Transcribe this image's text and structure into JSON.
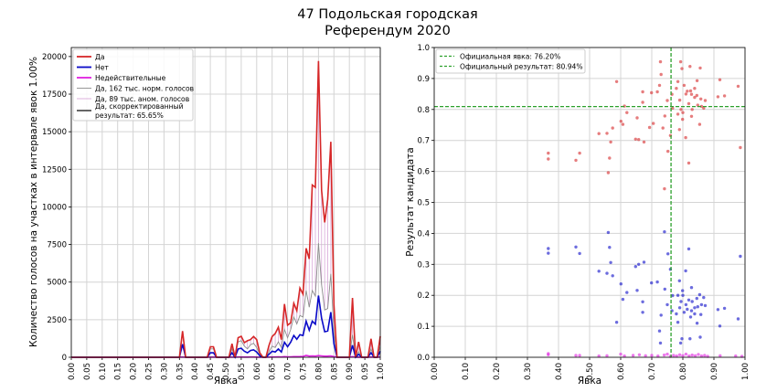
{
  "title": [
    "47 Подольская городская",
    "Референдум 2020"
  ],
  "colors": {
    "yes": "#d62728",
    "no": "#0a0ac8",
    "invalid": "#e020e0",
    "normal": "#8c8c8c",
    "anomalous": "#d8a8d8",
    "corrected": "#000000",
    "official": "#2ca02c",
    "grid": "#d4d4d4"
  },
  "chart_data": [
    {
      "type": "line",
      "xlabel": "Явка",
      "ylabel": "Количество голосов на участках в интервале явок 1.00%",
      "xlim": [
        0,
        1
      ],
      "ylim": [
        0,
        20600
      ],
      "grid": true,
      "legend_placement": "top-left",
      "xticks": [
        "0.00",
        "0.05",
        "0.10",
        "0.15",
        "0.20",
        "0.25",
        "0.30",
        "0.35",
        "0.40",
        "0.45",
        "0.50",
        "0.55",
        "0.60",
        "0.65",
        "0.70",
        "0.75",
        "0.80",
        "0.85",
        "0.90",
        "0.95",
        "1.00"
      ],
      "yticks": [
        "0",
        "2500",
        "5000",
        "7500",
        "10000",
        "12500",
        "15000",
        "17500",
        "20000"
      ],
      "x": [
        0.36,
        0.37,
        0.44,
        0.45,
        0.46,
        0.47,
        0.51,
        0.52,
        0.53,
        0.54,
        0.55,
        0.56,
        0.57,
        0.58,
        0.59,
        0.6,
        0.61,
        0.62,
        0.63,
        0.64,
        0.65,
        0.66,
        0.67,
        0.68,
        0.69,
        0.7,
        0.71,
        0.72,
        0.73,
        0.74,
        0.75,
        0.76,
        0.77,
        0.78,
        0.79,
        0.8,
        0.81,
        0.82,
        0.83,
        0.84,
        0.85,
        0.86,
        0.9,
        0.91,
        0.92,
        0.93,
        0.94,
        0.96,
        0.97,
        0.98,
        0.99,
        1.0
      ],
      "series": [
        {
          "name": "Да",
          "key": "yes",
          "values": [
            1740,
            0,
            0,
            700,
            700,
            0,
            0,
            900,
            0,
            1300,
            1400,
            970,
            1100,
            1170,
            1380,
            1170,
            300,
            0,
            0,
            800,
            1380,
            1580,
            2000,
            1170,
            3540,
            2130,
            2290,
            3600,
            3100,
            4600,
            4200,
            7250,
            6540,
            11460,
            11300,
            19700,
            11100,
            8970,
            10500,
            14330,
            3500,
            0,
            0,
            3950,
            0,
            1030,
            0,
            0,
            1230,
            0,
            0,
            1400
          ]
        },
        {
          "name": "Нет",
          "key": "no",
          "values": [
            870,
            0,
            0,
            300,
            300,
            0,
            0,
            300,
            0,
            550,
            600,
            400,
            300,
            450,
            500,
            350,
            100,
            0,
            0,
            200,
            400,
            350,
            550,
            350,
            1000,
            700,
            1000,
            1450,
            1200,
            1500,
            1450,
            2400,
            1800,
            2400,
            2200,
            4100,
            2600,
            1700,
            1750,
            3000,
            900,
            0,
            0,
            800,
            0,
            200,
            0,
            0,
            300,
            0,
            0,
            400
          ]
        },
        {
          "name": "Недействительные",
          "key": "invalid",
          "values": [
            20,
            0,
            0,
            10,
            10,
            0,
            0,
            10,
            0,
            20,
            20,
            10,
            10,
            20,
            20,
            10,
            0,
            0,
            0,
            10,
            20,
            20,
            30,
            20,
            40,
            30,
            30,
            40,
            40,
            50,
            60,
            120,
            80,
            90,
            80,
            110,
            90,
            70,
            80,
            90,
            40,
            0,
            0,
            40,
            0,
            10,
            0,
            0,
            20,
            0,
            0,
            20
          ]
        },
        {
          "name": "Да, 162 тыс. норм. голосов",
          "key": "normal",
          "values": [
            1610,
            0,
            0,
            560,
            560,
            0,
            0,
            560,
            0,
            1020,
            1110,
            740,
            560,
            830,
            930,
            650,
            190,
            0,
            0,
            370,
            740,
            650,
            1020,
            650,
            1850,
            1300,
            1850,
            2680,
            2220,
            2780,
            2680,
            4440,
            3330,
            4440,
            4070,
            7590,
            4810,
            3150,
            3240,
            5550,
            1670,
            0,
            0,
            1480,
            0,
            370,
            0,
            0,
            560,
            0,
            0,
            740
          ]
        },
        {
          "name": "Да, 89 тыс. аном. голосов",
          "key": "anomalous"
        },
        {
          "name": "Да, скорректированный результат: 65.65%",
          "key": "corrected"
        }
      ]
    },
    {
      "type": "scatter",
      "xlabel": "Явка",
      "ylabel": "Результат кандидата",
      "xlim": [
        0,
        1
      ],
      "ylim": [
        0,
        1
      ],
      "grid": true,
      "legend_placement": "top-left",
      "xticks": [
        "0.00",
        "0.10",
        "0.20",
        "0.30",
        "0.40",
        "0.50",
        "0.60",
        "0.70",
        "0.80",
        "0.90",
        "1.00"
      ],
      "yticks": [
        "0.0",
        "0.1",
        "0.2",
        "0.3",
        "0.4",
        "0.5",
        "0.6",
        "0.7",
        "0.8",
        "0.9",
        "1.0"
      ],
      "official_turnout": 0.762,
      "official_result": 0.8094,
      "legend": [
        "Официальная явка: 76.20%",
        "Официальный результат: 80.94%"
      ],
      "series": [
        {
          "key": "yes",
          "points": [
            [
              0.367,
              0.659
            ],
            [
              0.367,
              0.64
            ],
            [
              0.456,
              0.636
            ],
            [
              0.468,
              0.659
            ],
            [
              0.53,
              0.722
            ],
            [
              0.556,
              0.723
            ],
            [
              0.568,
              0.695
            ],
            [
              0.564,
              0.643
            ],
            [
              0.56,
              0.596
            ],
            [
              0.574,
              0.74
            ],
            [
              0.587,
              0.89
            ],
            [
              0.601,
              0.762
            ],
            [
              0.607,
              0.752
            ],
            [
              0.62,
              0.79
            ],
            [
              0.612,
              0.811
            ],
            [
              0.648,
              0.704
            ],
            [
              0.658,
              0.703
            ],
            [
              0.675,
              0.695
            ],
            [
              0.653,
              0.773
            ],
            [
              0.671,
              0.857
            ],
            [
              0.671,
              0.823
            ],
            [
              0.699,
              0.854
            ],
            [
              0.718,
              0.857
            ],
            [
              0.725,
              0.878
            ],
            [
              0.728,
              0.954
            ],
            [
              0.73,
              0.913
            ],
            [
              0.693,
              0.742
            ],
            [
              0.705,
              0.755
            ],
            [
              0.736,
              0.74
            ],
            [
              0.741,
              0.544
            ],
            [
              0.752,
              0.665
            ],
            [
              0.76,
              0.716
            ],
            [
              0.742,
              0.779
            ],
            [
              0.75,
              0.829
            ],
            [
              0.765,
              0.849
            ],
            [
              0.767,
              0.804
            ],
            [
              0.784,
              0.89
            ],
            [
              0.793,
              0.954
            ],
            [
              0.797,
              0.932
            ],
            [
              0.823,
              0.939
            ],
            [
              0.856,
              0.934
            ],
            [
              0.846,
              0.893
            ],
            [
              0.919,
              0.896
            ],
            [
              0.913,
              0.841
            ],
            [
              0.934,
              0.844
            ],
            [
              0.978,
              0.875
            ],
            [
              0.985,
              0.677
            ],
            [
              0.819,
              0.627
            ],
            [
              0.809,
              0.709
            ],
            [
              0.789,
              0.735
            ],
            [
              0.799,
              0.768
            ],
            [
              0.828,
              0.778
            ],
            [
              0.854,
              0.752
            ],
            [
              0.867,
              0.804
            ],
            [
              0.838,
              0.839
            ],
            [
              0.814,
              0.859
            ],
            [
              0.804,
              0.878
            ],
            [
              0.779,
              0.868
            ],
            [
              0.848,
              0.814
            ],
            [
              0.872,
              0.829
            ],
            [
              0.828,
              0.849
            ],
            [
              0.819,
              0.819
            ],
            [
              0.794,
              0.8
            ],
            [
              0.784,
              0.785
            ],
            [
              0.838,
              0.868
            ],
            [
              0.858,
              0.834
            ],
            [
              0.81,
              0.85
            ],
            [
              0.825,
              0.86
            ],
            [
              0.845,
              0.845
            ],
            [
              0.79,
              0.83
            ],
            [
              0.86,
              0.81
            ],
            [
              0.8,
              0.79
            ],
            [
              0.83,
              0.8
            ]
          ]
        },
        {
          "key": "no",
          "points": [
            [
              0.367,
              0.351
            ],
            [
              0.367,
              0.336
            ],
            [
              0.456,
              0.356
            ],
            [
              0.468,
              0.335
            ],
            [
              0.53,
              0.278
            ],
            [
              0.556,
              0.271
            ],
            [
              0.568,
              0.306
            ],
            [
              0.564,
              0.355
            ],
            [
              0.56,
              0.403
            ],
            [
              0.574,
              0.263
            ],
            [
              0.587,
              0.113
            ],
            [
              0.601,
              0.237
            ],
            [
              0.607,
              0.187
            ],
            [
              0.62,
              0.209
            ],
            [
              0.648,
              0.293
            ],
            [
              0.658,
              0.3
            ],
            [
              0.675,
              0.307
            ],
            [
              0.653,
              0.216
            ],
            [
              0.671,
              0.179
            ],
            [
              0.671,
              0.145
            ],
            [
              0.699,
              0.24
            ],
            [
              0.718,
              0.243
            ],
            [
              0.725,
              0.085
            ],
            [
              0.728,
              0.046
            ],
            [
              0.73,
              0.136
            ],
            [
              0.741,
              0.405
            ],
            [
              0.752,
              0.334
            ],
            [
              0.76,
              0.284
            ],
            [
              0.742,
              0.22
            ],
            [
              0.75,
              0.17
            ],
            [
              0.765,
              0.15
            ],
            [
              0.767,
              0.199
            ],
            [
              0.784,
              0.113
            ],
            [
              0.793,
              0.046
            ],
            [
              0.797,
              0.06
            ],
            [
              0.823,
              0.06
            ],
            [
              0.856,
              0.065
            ],
            [
              0.846,
              0.11
            ],
            [
              0.919,
              0.101
            ],
            [
              0.913,
              0.154
            ],
            [
              0.934,
              0.158
            ],
            [
              0.978,
              0.124
            ],
            [
              0.985,
              0.326
            ],
            [
              0.819,
              0.35
            ],
            [
              0.809,
              0.279
            ],
            [
              0.789,
              0.247
            ],
            [
              0.799,
              0.215
            ],
            [
              0.828,
              0.225
            ],
            [
              0.854,
              0.202
            ],
            [
              0.867,
              0.193
            ],
            [
              0.838,
              0.16
            ],
            [
              0.814,
              0.155
            ],
            [
              0.804,
              0.145
            ],
            [
              0.779,
              0.14
            ],
            [
              0.848,
              0.163
            ],
            [
              0.872,
              0.167
            ],
            [
              0.828,
              0.15
            ],
            [
              0.819,
              0.185
            ],
            [
              0.794,
              0.18
            ],
            [
              0.784,
              0.2
            ],
            [
              0.838,
              0.14
            ],
            [
              0.858,
              0.138
            ],
            [
              0.81,
              0.17
            ],
            [
              0.825,
              0.13
            ],
            [
              0.845,
              0.19
            ],
            [
              0.79,
              0.16
            ],
            [
              0.86,
              0.17
            ],
            [
              0.8,
              0.2
            ],
            [
              0.83,
              0.18
            ]
          ]
        },
        {
          "key": "invalid",
          "points": [
            [
              0.367,
              0.012
            ],
            [
              0.367,
              0.008
            ],
            [
              0.456,
              0.006
            ],
            [
              0.468,
              0.006
            ],
            [
              0.53,
              0.004
            ],
            [
              0.556,
              0.005
            ],
            [
              0.6,
              0.01
            ],
            [
              0.612,
              0.004
            ],
            [
              0.64,
              0.006
            ],
            [
              0.66,
              0.008
            ],
            [
              0.68,
              0.005
            ],
            [
              0.7,
              0.006
            ],
            [
              0.72,
              0.004
            ],
            [
              0.74,
              0.007
            ],
            [
              0.75,
              0.01
            ],
            [
              0.76,
              0.003
            ],
            [
              0.77,
              0.006
            ],
            [
              0.78,
              0.004
            ],
            [
              0.79,
              0.008
            ],
            [
              0.8,
              0.005
            ],
            [
              0.81,
              0.01
            ],
            [
              0.82,
              0.004
            ],
            [
              0.83,
              0.007
            ],
            [
              0.84,
              0.005
            ],
            [
              0.85,
              0.009
            ],
            [
              0.86,
              0.004
            ],
            [
              0.87,
              0.006
            ],
            [
              0.88,
              0.003
            ],
            [
              0.92,
              0.005
            ],
            [
              0.97,
              0.004
            ],
            [
              0.99,
              0.003
            ]
          ]
        }
      ]
    }
  ]
}
